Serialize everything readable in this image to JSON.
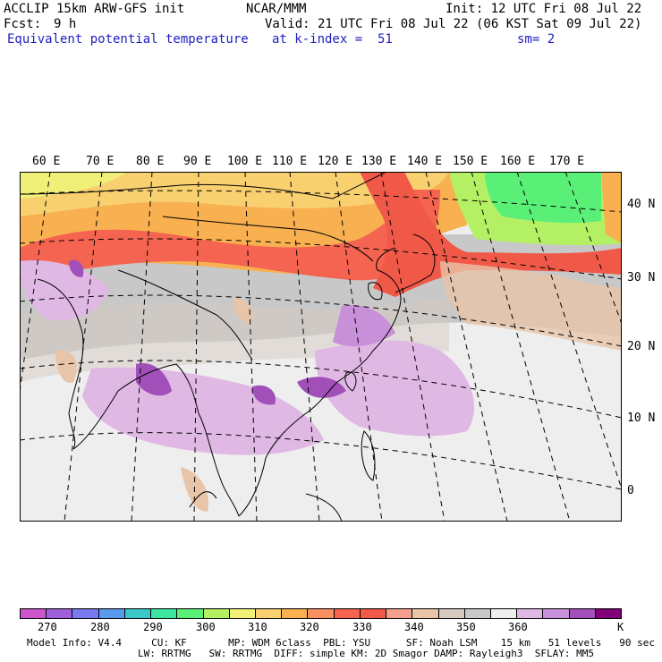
{
  "header": {
    "model": "ACCLIP 15km ARW-GFS init",
    "org": "NCAR/MMM",
    "init": "Init: 12 UTC Fri 08 Jul 22",
    "fcst_label": "Fcst:",
    "fcst_value": "9 h",
    "valid": "Valid: 21 UTC Fri 08 Jul 22 (06 KST Sat 09 Jul 22)",
    "field": "Equivalent potential temperature",
    "level": "at k-index =  51",
    "smooth": "sm= 2"
  },
  "map": {
    "lon_labels": [
      "60 E",
      "70 E",
      "80 E",
      "90 E",
      "100 E",
      "110 E",
      "120 E",
      "130 E",
      "140 E",
      "150 E",
      "160 E",
      "170 E"
    ],
    "lat_labels": [
      "40 N",
      "30 N",
      "20 N",
      "10 N",
      "0"
    ]
  },
  "colorbar": {
    "colors": [
      "#cc55cc",
      "#a060d8",
      "#7a7af0",
      "#5a9aee",
      "#3cc8c8",
      "#3ce6a0",
      "#5af078",
      "#b4f064",
      "#f0f078",
      "#f8d070",
      "#f8b050",
      "#f89060",
      "#f46450",
      "#f05848",
      "#f4a08c",
      "#e8c4a8",
      "#d4cac0",
      "#c8c8c8",
      "#eeeeee",
      "#e0b8e4",
      "#c890d8",
      "#a050b8",
      "#800078"
    ],
    "labels": [
      "270",
      "280",
      "290",
      "300",
      "310",
      "320",
      "330",
      "340",
      "350",
      "360"
    ],
    "unit": "K"
  },
  "footer": {
    "line1": "Model Info: V4.4     CU: KF       MP: WDM 6class  PBL: YSU      SF: Noah LSM    15 km   51 levels   90 sec",
    "line2": "LW: RRTMG   SW: RRTMG  DIFF: simple KM: 2D Smagor DAMP: Rayleigh3  SFLAY: MM5"
  }
}
